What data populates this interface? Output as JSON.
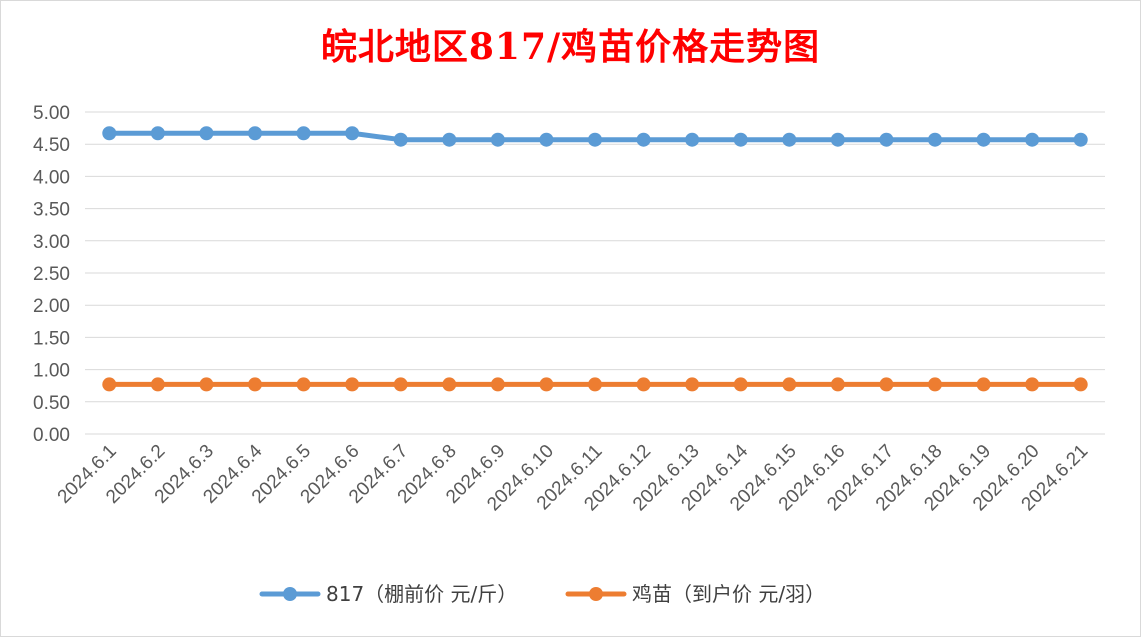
{
  "chart_data": {
    "type": "line",
    "title": "皖北地区817/鸡苗价格走势图",
    "xlabel": "",
    "ylabel": "",
    "categories": [
      "2024.6.1",
      "2024.6.2",
      "2024.6.3",
      "2024.6.4",
      "2024.6.5",
      "2024.6.6",
      "2024.6.7",
      "2024.6.8",
      "2024.6.9",
      "2024.6.10",
      "2024.6.11",
      "2024.6.12",
      "2024.6.13",
      "2024.6.14",
      "2024.6.15",
      "2024.6.16",
      "2024.6.17",
      "2024.6.18",
      "2024.6.19",
      "2024.6.20",
      "2024.6.21"
    ],
    "yticks": [
      "0.00",
      "0.50",
      "1.00",
      "1.50",
      "2.00",
      "2.50",
      "3.00",
      "3.50",
      "4.00",
      "4.50",
      "5.00"
    ],
    "ylim": [
      0,
      5
    ],
    "grid": "horizontal",
    "legend_position": "bottom",
    "series": [
      {
        "name": "817（棚前价 元/斤）",
        "color": "#5b9bd5",
        "values": [
          4.67,
          4.67,
          4.67,
          4.67,
          4.67,
          4.67,
          4.57,
          4.57,
          4.57,
          4.57,
          4.57,
          4.57,
          4.57,
          4.57,
          4.57,
          4.57,
          4.57,
          4.57,
          4.57,
          4.57,
          4.57
        ]
      },
      {
        "name": "鸡苗（到户价 元/羽）",
        "color": "#ed7d31",
        "values": [
          0.77,
          0.77,
          0.77,
          0.77,
          0.77,
          0.77,
          0.77,
          0.77,
          0.77,
          0.77,
          0.77,
          0.77,
          0.77,
          0.77,
          0.77,
          0.77,
          0.77,
          0.77,
          0.77,
          0.77,
          0.77
        ]
      }
    ]
  }
}
